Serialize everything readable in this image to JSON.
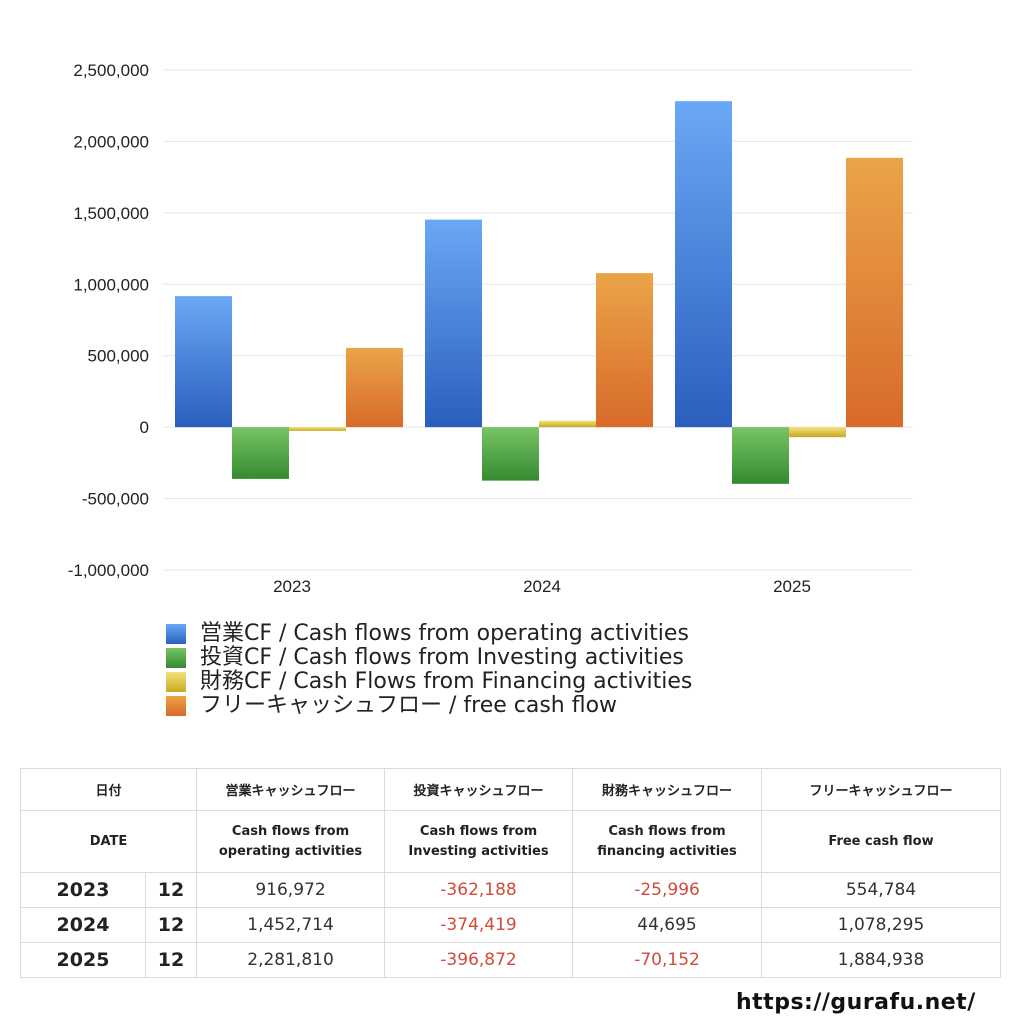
{
  "chart_data": {
    "type": "bar",
    "categories": [
      "2023",
      "2024",
      "2025"
    ],
    "series": [
      {
        "name": "営業CF / Cash flows from operating activities",
        "values": [
          916972,
          1452714,
          2281810
        ]
      },
      {
        "name": "投資CF / Cash flows from Investing activities",
        "values": [
          -362188,
          -374419,
          -396872
        ]
      },
      {
        "name": "財務CF / Cash Flows from Financing activities",
        "values": [
          -25996,
          44695,
          -70152
        ]
      },
      {
        "name": "フリーキャッシュフロー / free cash flow",
        "values": [
          554784,
          1078295,
          1884938
        ]
      }
    ],
    "ylim": [
      -1000000,
      2500000
    ],
    "yticks": [
      2500000,
      2000000,
      1500000,
      1000000,
      500000,
      0,
      -500000,
      -1000000
    ],
    "ytick_labels": [
      "2,500,000",
      "2,000,000",
      "1,500,000",
      "1,000,000",
      "500,000",
      "0",
      "-500,000",
      "-1,000,000"
    ],
    "grid": true,
    "legend_position": "bottom-left",
    "colors": {
      "operating": [
        "#6aa8f5",
        "#2a5fbe"
      ],
      "investing": [
        "#78c466",
        "#358a30"
      ],
      "financing": [
        "#f3e27a",
        "#c9a822"
      ],
      "free": [
        "#eba448",
        "#d86a2a"
      ]
    }
  },
  "table": {
    "header_date": "日付",
    "header_date_en": "DATE",
    "headers_jp": [
      "営業キャッシュフロー",
      "投資キャッシュフロー",
      "財務キャッシュフロー",
      "フリーキャッシュフロー"
    ],
    "headers_en": [
      [
        "Cash flows from",
        "operating activities"
      ],
      [
        "Cash flows from",
        "Investing activities"
      ],
      [
        "Cash flows from",
        "financing activities"
      ],
      [
        "Free cash flow",
        ""
      ]
    ],
    "rows": [
      {
        "year": "2023",
        "month": "12",
        "values": [
          "916,972",
          "-362,188",
          "-25,996",
          "554,784"
        ]
      },
      {
        "year": "2024",
        "month": "12",
        "values": [
          "1,452,714",
          "-374,419",
          "44,695",
          "1,078,295"
        ]
      },
      {
        "year": "2025",
        "month": "12",
        "values": [
          "2,281,810",
          "-396,872",
          "-70,152",
          "1,884,938"
        ]
      }
    ],
    "negative_color": "#d24a3a"
  },
  "footer": {
    "url": "https://gurafu.net/"
  }
}
